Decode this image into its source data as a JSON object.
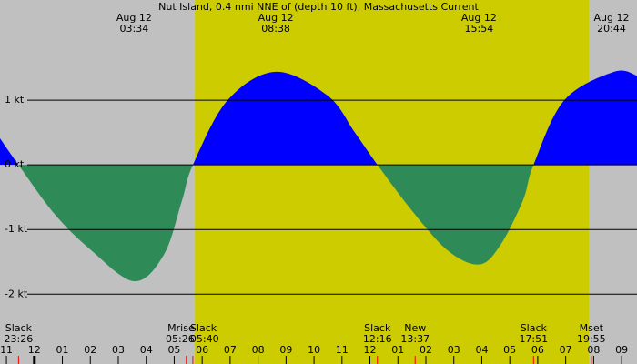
{
  "chart_data": {
    "type": "area",
    "title": "Nut Island, 0.4 nmi NNE of (depth 10 ft), Massachusetts Current",
    "x": [
      22.77,
      23.43,
      24.72,
      26.03,
      27.57,
      28.63,
      29.28,
      29.67,
      30.91,
      32.63,
      34.49,
      35.46,
      36.27,
      37.47,
      38.77,
      39.9,
      40.65,
      41.47,
      41.85,
      42.95,
      44.73,
      45.55
    ],
    "series": [
      {
        "name": "Current",
        "color": "#0000ff",
        "negative_color": "#2e8b57",
        "values": [
          0.41,
          0,
          -0.76,
          -1.32,
          -1.8,
          -1.39,
          -0.55,
          0,
          1.0,
          1.44,
          1.07,
          0.5,
          0,
          -0.69,
          -1.32,
          -1.54,
          -1.25,
          -0.55,
          0,
          1.0,
          1.44,
          1.38
        ]
      }
    ],
    "xlim": [
      22.77,
      45.55
    ],
    "ylim": [
      -3.08,
      2.55
    ],
    "xticks": [
      {
        "value": 23,
        "label": "11"
      },
      {
        "value": 24,
        "label": "12"
      },
      {
        "value": 25,
        "label": "01"
      },
      {
        "value": 26,
        "label": "02"
      },
      {
        "value": 27,
        "label": "03"
      },
      {
        "value": 28,
        "label": "04"
      },
      {
        "value": 29,
        "label": "05"
      },
      {
        "value": 30,
        "label": "06"
      },
      {
        "value": 31,
        "label": "07"
      },
      {
        "value": 32,
        "label": "08"
      },
      {
        "value": 33,
        "label": "09"
      },
      {
        "value": 34,
        "label": "10"
      },
      {
        "value": 35,
        "label": "11"
      },
      {
        "value": 36,
        "label": "12"
      },
      {
        "value": 37,
        "label": "01"
      },
      {
        "value": 38,
        "label": "02"
      },
      {
        "value": 39,
        "label": "03"
      },
      {
        "value": 40,
        "label": "04"
      },
      {
        "value": 41,
        "label": "05"
      },
      {
        "value": 42,
        "label": "06"
      },
      {
        "value": 43,
        "label": "07"
      },
      {
        "value": 44,
        "label": "08"
      },
      {
        "value": 45,
        "label": "09"
      }
    ],
    "yticks": [
      {
        "value": 1,
        "label": "1 kt"
      },
      {
        "value": 0,
        "label": "0 kt"
      },
      {
        "value": -1,
        "label": "-1 kt"
      },
      {
        "value": -2,
        "label": "-2 kt"
      }
    ],
    "grid": true,
    "background": "#c0c0c0",
    "daylight": [
      29.74,
      43.83
    ],
    "daylight_color": "#cccc00",
    "peaks": [
      {
        "date": "Aug 12",
        "time": "03:34"
      },
      {
        "date": "Aug 12",
        "time": "08:38"
      },
      {
        "date": "Aug 12",
        "time": "15:54"
      },
      {
        "date": "Aug 12",
        "time": "20:44"
      }
    ],
    "events": [
      {
        "name": "Slack",
        "time": "23:26"
      },
      {
        "name": "Mrise",
        "time": "05:26"
      },
      {
        "name": "Slack",
        "time": "05:40"
      },
      {
        "name": "Slack",
        "time": "12:16"
      },
      {
        "name": "New",
        "time": "13:37"
      },
      {
        "name": "Slack",
        "time": "17:51"
      },
      {
        "name": "Mset",
        "time": "19:55"
      }
    ]
  }
}
